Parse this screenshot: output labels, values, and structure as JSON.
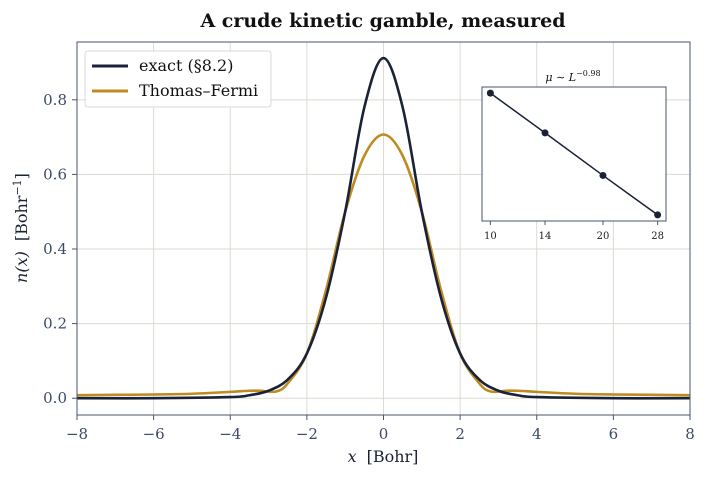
{
  "chart_data": {
    "type": "line",
    "title": "A crude kinetic gamble, measured",
    "xlabel": "x",
    "xlabel_unit": "[Bohr]",
    "ylabel": "n(x)",
    "ylabel_unit": "[Bohr",
    "ylabel_exp": "−1",
    "ylabel_close": "]",
    "xlim": [
      -8,
      8
    ],
    "ylim": [
      -0.045,
      0.955
    ],
    "xticks": [
      -8,
      -6,
      -4,
      -2,
      0,
      2,
      4,
      6,
      8
    ],
    "xtick_labels": [
      "−8",
      "−6",
      "−4",
      "−2",
      "0",
      "2",
      "4",
      "6",
      "8"
    ],
    "yticks": [
      0.0,
      0.2,
      0.4,
      0.6,
      0.8
    ],
    "ytick_labels": [
      "0.0",
      "0.2",
      "0.4",
      "0.6",
      "0.8"
    ],
    "grid": true,
    "legend_position": "top-left",
    "series": [
      {
        "name": "exact (§8.2)",
        "color": "#1a2238",
        "x": [
          -8,
          -6,
          -4,
          -3.5,
          -3,
          -2.5,
          -2,
          -1.5,
          -1,
          -0.5,
          0,
          0.5,
          1,
          1.5,
          2,
          2.5,
          3,
          3.5,
          4,
          6,
          8
        ],
        "y": [
          0.0,
          0.0,
          0.003,
          0.008,
          0.02,
          0.05,
          0.12,
          0.27,
          0.5,
          0.78,
          0.912,
          0.78,
          0.5,
          0.27,
          0.12,
          0.05,
          0.02,
          0.008,
          0.003,
          0.0,
          0.0
        ]
      },
      {
        "name": "Thomas–Fermi",
        "color": "#bf8a22",
        "x": [
          -8,
          -6,
          -5,
          -4,
          -3.5,
          -3.2,
          -2.8,
          -2.5,
          -2,
          -1.5,
          -1,
          -0.5,
          0,
          0.5,
          1,
          1.5,
          2,
          2.5,
          2.8,
          3.2,
          3.5,
          4,
          5,
          6,
          8
        ],
        "y": [
          0.008,
          0.01,
          0.012,
          0.017,
          0.02,
          0.02,
          0.018,
          0.04,
          0.12,
          0.29,
          0.5,
          0.65,
          0.707,
          0.65,
          0.5,
          0.29,
          0.12,
          0.04,
          0.018,
          0.02,
          0.02,
          0.017,
          0.012,
          0.01,
          0.008
        ]
      }
    ],
    "inset": {
      "title_pre": "μ ∼ L",
      "title_exp": "−0.98",
      "xticks": [
        10,
        14,
        20,
        28
      ],
      "xtick_labels": [
        "10",
        "14",
        "20",
        "28"
      ],
      "log_x": true,
      "log_y": true,
      "color": "#1a2238",
      "x": [
        10,
        14,
        20,
        28
      ],
      "y": [
        0.1,
        0.0719,
        0.0505,
        0.0364
      ]
    }
  }
}
